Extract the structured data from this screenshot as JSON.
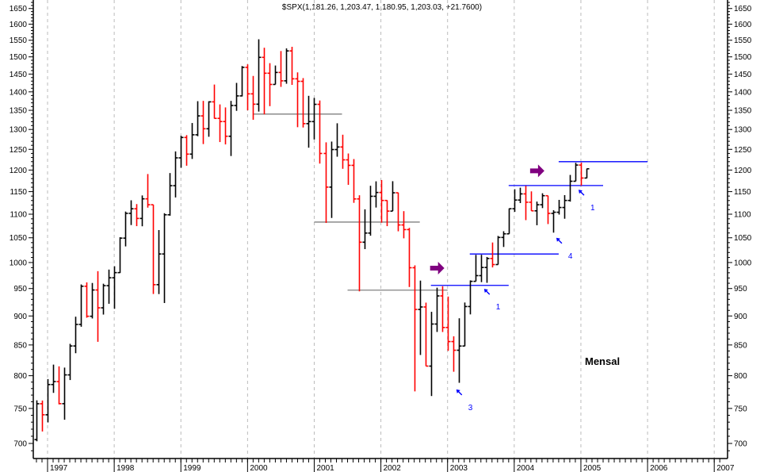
{
  "chart_data": {
    "type": "ohlc",
    "title": "$SPX(1,181.26, 1,203.47, 1,180.95, 1,203.03, +21.7600)",
    "period_label": "Mensal",
    "y_scale": "log",
    "ylim": [
      690,
      1690
    ],
    "y_ticks": [
      700,
      750,
      800,
      850,
      900,
      950,
      1000,
      1050,
      1100,
      1150,
      1200,
      1250,
      1300,
      1350,
      1400,
      1450,
      1500,
      1550,
      1600,
      1650
    ],
    "x_ticks": [
      "1997",
      "1998",
      "1999",
      "2000",
      "2001",
      "2002",
      "2003",
      "2004",
      "2005",
      "2006",
      "2007"
    ],
    "grid": "vertical dashed at years",
    "colors": {
      "up": "#000000",
      "down": "#ff0000",
      "support": "#808080",
      "resistance": "#0000ff",
      "signal_arrow": "#800080",
      "pointer": "#0000ff"
    },
    "bars_fields": [
      "month",
      "open",
      "high",
      "low",
      "close"
    ],
    "bars": [
      [
        "1996-11",
        705.3,
        762.1,
        703.0,
        757.0
      ],
      [
        "1996-12",
        757.0,
        761.8,
        716.7,
        740.7
      ],
      [
        "1997-01",
        740.7,
        794.7,
        729.6,
        786.2
      ],
      [
        "1997-02",
        786.2,
        817.7,
        773.4,
        790.8
      ],
      [
        "1997-03",
        790.8,
        814.9,
        756.1,
        757.1
      ],
      [
        "1997-04",
        757.1,
        812.9,
        733.5,
        801.3
      ],
      [
        "1997-05",
        801.3,
        851.9,
        793.2,
        848.3
      ],
      [
        "1997-06",
        848.3,
        898.7,
        836.3,
        885.1
      ],
      [
        "1997-07",
        885.1,
        957.7,
        881.1,
        954.3
      ],
      [
        "1997-08",
        954.3,
        961.6,
        896.9,
        899.5
      ],
      [
        "1997-09",
        899.5,
        960.5,
        895.6,
        947.3
      ],
      [
        "1997-10",
        947.3,
        983.1,
        855.3,
        914.6
      ],
      [
        "1997-11",
        914.6,
        959.1,
        902.5,
        955.4
      ],
      [
        "1997-12",
        955.4,
        986.2,
        921.9,
        970.4
      ],
      [
        "1998-01",
        970.4,
        992.7,
        912.8,
        980.3
      ],
      [
        "1998-02",
        980.3,
        1051.1,
        979.6,
        1049.3
      ],
      [
        "1998-03",
        1049.3,
        1105.7,
        1032.3,
        1101.8
      ],
      [
        "1998-04",
        1101.8,
        1130.5,
        1076.7,
        1111.8
      ],
      [
        "1998-05",
        1111.8,
        1122.1,
        1074.4,
        1090.8
      ],
      [
        "1998-06",
        1090.8,
        1141.4,
        1074.1,
        1133.8
      ],
      [
        "1998-07",
        1133.8,
        1190.6,
        1114.3,
        1120.7
      ],
      [
        "1998-08",
        1120.7,
        1120.7,
        939.9,
        957.3
      ],
      [
        "1998-09",
        957.3,
        1066.1,
        939.7,
        1017.0
      ],
      [
        "1998-10",
        1017.0,
        1102.1,
        923.3,
        1098.7
      ],
      [
        "1998-11",
        1098.7,
        1192.9,
        1096.7,
        1163.6
      ],
      [
        "1998-12",
        1163.6,
        1244.9,
        1136.9,
        1229.2
      ],
      [
        "1999-01",
        1229.2,
        1283.8,
        1205.5,
        1279.6
      ],
      [
        "1999-02",
        1279.6,
        1285.5,
        1210.3,
        1238.3
      ],
      [
        "1999-03",
        1238.3,
        1316.6,
        1226.6,
        1286.4
      ],
      [
        "1999-04",
        1286.4,
        1374.5,
        1282.8,
        1335.2
      ],
      [
        "1999-05",
        1335.2,
        1375.3,
        1263.1,
        1301.8
      ],
      [
        "1999-06",
        1301.8,
        1374.2,
        1281.4,
        1372.7
      ],
      [
        "1999-07",
        1372.7,
        1420.3,
        1328.1,
        1328.7
      ],
      [
        "1999-08",
        1328.7,
        1365.8,
        1268.1,
        1320.4
      ],
      [
        "1999-09",
        1320.4,
        1357.7,
        1262.2,
        1282.7
      ],
      [
        "1999-10",
        1282.7,
        1375.3,
        1233.7,
        1362.9
      ],
      [
        "1999-11",
        1362.9,
        1425.0,
        1348.6,
        1388.9
      ],
      [
        "1999-12",
        1388.9,
        1473.1,
        1387.4,
        1469.3
      ],
      [
        "2000-01",
        1469.3,
        1478.0,
        1350.1,
        1394.5
      ],
      [
        "2000-02",
        1394.5,
        1444.6,
        1325.1,
        1366.4
      ],
      [
        "2000-03",
        1366.4,
        1552.9,
        1346.6,
        1498.6
      ],
      [
        "2000-04",
        1498.6,
        1527.2,
        1339.4,
        1452.4
      ],
      [
        "2000-05",
        1452.4,
        1481.5,
        1361.1,
        1420.6
      ],
      [
        "2000-06",
        1420.6,
        1474.6,
        1420.6,
        1454.6
      ],
      [
        "2000-07",
        1454.6,
        1517.3,
        1413.9,
        1430.8
      ],
      [
        "2000-08",
        1430.8,
        1525.2,
        1422.6,
        1517.7
      ],
      [
        "2000-09",
        1517.7,
        1530.1,
        1419.4,
        1436.5
      ],
      [
        "2000-10",
        1436.5,
        1454.8,
        1305.8,
        1429.4
      ],
      [
        "2000-11",
        1429.4,
        1438.5,
        1305.0,
        1315.0
      ],
      [
        "2000-12",
        1315.0,
        1389.1,
        1254.1,
        1320.3
      ],
      [
        "2001-01",
        1320.3,
        1383.4,
        1274.6,
        1366.0
      ],
      [
        "2001-02",
        1366.0,
        1376.4,
        1215.4,
        1239.9
      ],
      [
        "2001-03",
        1239.9,
        1267.4,
        1081.2,
        1160.3
      ],
      [
        "2001-04",
        1160.3,
        1269.3,
        1091.9,
        1249.5
      ],
      [
        "2001-05",
        1249.5,
        1315.9,
        1232.0,
        1255.8
      ],
      [
        "2001-06",
        1255.8,
        1286.6,
        1203.0,
        1224.4
      ],
      [
        "2001-07",
        1224.4,
        1239.8,
        1165.5,
        1211.2
      ],
      [
        "2001-08",
        1211.2,
        1226.3,
        1124.9,
        1133.6
      ],
      [
        "2001-09",
        1133.6,
        1141.8,
        944.8,
        1040.9
      ],
      [
        "2001-10",
        1040.9,
        1110.6,
        1026.8,
        1059.8
      ],
      [
        "2001-11",
        1059.8,
        1163.4,
        1054.3,
        1139.5
      ],
      [
        "2001-12",
        1139.5,
        1173.6,
        1114.5,
        1148.1
      ],
      [
        "2002-01",
        1148.1,
        1176.6,
        1081.7,
        1130.2
      ],
      [
        "2002-02",
        1130.2,
        1130.5,
        1074.4,
        1106.7
      ],
      [
        "2002-03",
        1106.7,
        1173.9,
        1106.7,
        1147.4
      ],
      [
        "2002-04",
        1147.4,
        1147.8,
        1063.5,
        1076.9
      ],
      [
        "2002-05",
        1076.9,
        1106.6,
        1048.9,
        1067.1
      ],
      [
        "2002-06",
        1067.1,
        1070.7,
        952.9,
        989.8
      ],
      [
        "2002-07",
        989.8,
        994.5,
        775.7,
        911.6
      ],
      [
        "2002-08",
        911.6,
        965.0,
        833.4,
        916.1
      ],
      [
        "2002-09",
        916.1,
        924.0,
        815.3,
        815.3
      ],
      [
        "2002-10",
        815.3,
        907.4,
        768.6,
        885.8
      ],
      [
        "2002-11",
        885.8,
        951.6,
        872.1,
        936.3
      ],
      [
        "2002-12",
        936.3,
        954.3,
        872.0,
        879.8
      ],
      [
        "2003-01",
        879.8,
        935.1,
        840.3,
        855.7
      ],
      [
        "2003-02",
        855.7,
        864.6,
        806.3,
        841.2
      ],
      [
        "2003-03",
        841.2,
        895.9,
        788.9,
        848.2
      ],
      [
        "2003-04",
        848.2,
        924.2,
        847.9,
        916.9
      ],
      [
        "2003-05",
        916.9,
        965.4,
        902.8,
        963.6
      ],
      [
        "2003-06",
        963.6,
        1015.3,
        963.6,
        974.5
      ],
      [
        "2003-07",
        974.5,
        1015.4,
        962.1,
        990.3
      ],
      [
        "2003-08",
        990.3,
        1011.0,
        960.8,
        1008.0
      ],
      [
        "2003-09",
        1008.0,
        1040.3,
        990.4,
        996.0
      ],
      [
        "2003-10",
        996.0,
        1053.8,
        996.0,
        1050.7
      ],
      [
        "2003-11",
        1050.7,
        1063.6,
        1031.2,
        1058.2
      ],
      [
        "2003-12",
        1058.2,
        1112.6,
        1058.2,
        1111.9
      ],
      [
        "2004-01",
        1111.9,
        1155.4,
        1105.1,
        1131.1
      ],
      [
        "2004-02",
        1131.1,
        1159.0,
        1124.4,
        1144.9
      ],
      [
        "2004-03",
        1144.9,
        1163.2,
        1087.2,
        1126.2
      ],
      [
        "2004-04",
        1126.2,
        1150.6,
        1107.2,
        1107.3
      ],
      [
        "2004-05",
        1107.3,
        1127.7,
        1076.3,
        1120.7
      ],
      [
        "2004-06",
        1120.7,
        1146.3,
        1113.3,
        1140.8
      ],
      [
        "2004-07",
        1140.8,
        1140.8,
        1078.8,
        1101.7
      ],
      [
        "2004-08",
        1101.7,
        1108.6,
        1060.7,
        1104.2
      ],
      [
        "2004-09",
        1104.2,
        1131.5,
        1099.2,
        1114.6
      ],
      [
        "2004-10",
        1114.6,
        1142.1,
        1090.2,
        1130.2
      ],
      [
        "2004-11",
        1130.2,
        1188.5,
        1127.6,
        1173.8
      ],
      [
        "2004-12",
        1173.8,
        1217.3,
        1173.8,
        1211.9
      ],
      [
        "2005-01",
        1211.9,
        1217.8,
        1163.8,
        1181.3
      ],
      [
        "2005-02",
        1181.26,
        1203.47,
        1180.95,
        1203.03
      ]
    ],
    "horizontal_lines": [
      {
        "kind": "support",
        "price": 1340,
        "from": "2000-02",
        "to": "2001-06"
      },
      {
        "kind": "support",
        "price": 1083,
        "from": "2001-01",
        "to": "2002-08"
      },
      {
        "kind": "support",
        "price": 947,
        "from": "2001-07",
        "to": "2003-01"
      },
      {
        "kind": "resistance",
        "price": 956,
        "from": "2002-10",
        "to": "2003-12"
      },
      {
        "kind": "resistance",
        "price": 1017,
        "from": "2003-05",
        "to": "2004-09"
      },
      {
        "kind": "resistance",
        "price": 1164,
        "from": "2003-12",
        "to": "2005-05"
      },
      {
        "kind": "resistance",
        "price": 1220,
        "from": "2004-09",
        "to": "2006-01"
      }
    ],
    "signal_arrows": [
      {
        "month": "2002-11",
        "price": 989
      },
      {
        "month": "2004-05",
        "price": 1198
      }
    ],
    "pointers": [
      {
        "month": "2003-03",
        "price": 775,
        "label": "3"
      },
      {
        "month": "2003-08",
        "price": 945,
        "label": "1"
      },
      {
        "month": "2004-09",
        "price": 1045,
        "label": "4"
      },
      {
        "month": "2005-01",
        "price": 1149,
        "label": "1"
      }
    ]
  }
}
